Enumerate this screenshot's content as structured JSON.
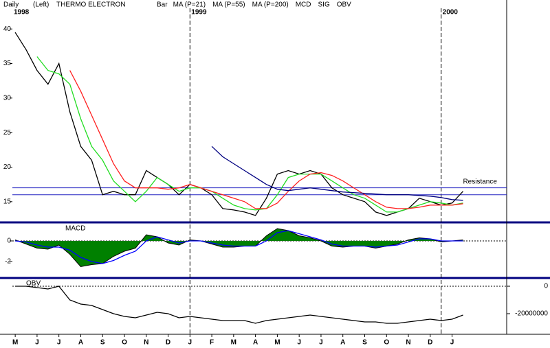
{
  "period": "Daily",
  "scale_side": "(Left)",
  "title": "THERMO ELECTRON",
  "years": [
    {
      "label": "1998",
      "x": -0.13
    },
    {
      "label": "1999",
      "x": 8
    },
    {
      "label": "2000",
      "x": 19.5
    }
  ],
  "chart_data": [
    {
      "type": "line",
      "panel_label": null,
      "annotation": {
        "text": "Resistance",
        "x": 20.5,
        "y": 17.5
      },
      "x": [
        0,
        0.5,
        1,
        1.5,
        2,
        2.5,
        3,
        3.5,
        4,
        4.5,
        5,
        5.5,
        6,
        6.5,
        7,
        7.5,
        8,
        8.5,
        9,
        9.5,
        10,
        10.5,
        11,
        11.5,
        12,
        12.5,
        13,
        13.5,
        14,
        14.5,
        15,
        15.5,
        16,
        16.5,
        17,
        17.5,
        18,
        18.5,
        19,
        19.5,
        20,
        20.5
      ],
      "xlim": [
        -0.13,
        22.5
      ],
      "ylim": [
        12.1,
        43
      ],
      "yticks": [
        15,
        20,
        25,
        30,
        35,
        40
      ],
      "y_axis": "left",
      "hlines": [
        17,
        16
      ],
      "hline_color": "#2020c0",
      "hline_dashed": false,
      "series": [
        {
          "name": "Bar",
          "color": "#000000",
          "values": [
            39.5,
            37,
            34,
            32,
            35,
            28,
            23,
            21,
            16,
            16.5,
            16,
            16,
            19.5,
            18.5,
            17.5,
            16,
            17.5,
            17,
            16,
            14,
            13.8,
            13.5,
            13,
            15.5,
            19,
            19.5,
            19,
            19.5,
            19,
            17,
            16,
            15.5,
            15,
            13.5,
            13,
            13.5,
            14,
            15.5,
            15,
            14.5,
            14.8,
            16.5
          ]
        },
        {
          "name": "MA (P=21)",
          "color": "#22dd22",
          "values": [
            null,
            null,
            36,
            34,
            33.5,
            32,
            27,
            23,
            21,
            18,
            16.5,
            15,
            16.5,
            18.5,
            17.5,
            16.5,
            17,
            17,
            16.5,
            15.5,
            14.5,
            14,
            13.8,
            14,
            16,
            18.5,
            19,
            19,
            19,
            18,
            17,
            16,
            15.5,
            14.5,
            13.5,
            13.5,
            14,
            14.5,
            15,
            14.8,
            14.5,
            14.8
          ]
        },
        {
          "name": "MA (P=55)",
          "color": "#ff2020",
          "values": [
            null,
            null,
            null,
            null,
            null,
            34,
            31,
            27.5,
            24,
            20.5,
            18,
            17,
            17,
            17,
            16.8,
            17,
            17.5,
            17,
            16.5,
            16,
            15.5,
            15,
            14,
            14,
            14.8,
            16.5,
            18,
            19,
            19.2,
            18.8,
            18,
            17,
            16,
            15,
            14.2,
            14,
            14,
            14.2,
            14.5,
            14.5,
            14.5,
            14.7
          ]
        },
        {
          "name": "MA (P=200)",
          "color": "#000080",
          "values": [
            null,
            null,
            null,
            null,
            null,
            null,
            null,
            null,
            null,
            null,
            null,
            null,
            null,
            null,
            null,
            null,
            null,
            null,
            23,
            21.5,
            20.5,
            19.5,
            18.5,
            17.5,
            16.8,
            16.6,
            16.8,
            17,
            16.8,
            16.6,
            16.4,
            16.3,
            16.2,
            16.1,
            16,
            16,
            16,
            15.9,
            15.8,
            15.6,
            15.3,
            15.2
          ]
        }
      ]
    },
    {
      "type": "line",
      "panel_label": "MACD",
      "x": [
        0,
        0.5,
        1,
        1.5,
        2,
        2.5,
        3,
        3.5,
        4,
        4.5,
        5,
        5.5,
        6,
        6.5,
        7,
        7.5,
        8,
        8.5,
        9,
        9.5,
        10,
        10.5,
        11,
        11.5,
        12,
        12.5,
        13,
        13.5,
        14,
        14.5,
        15,
        15.5,
        16,
        16.5,
        17,
        17.5,
        18,
        18.5,
        19,
        19.5,
        20,
        20.5
      ],
      "xlim": [
        -0.13,
        22.5
      ],
      "ylim": [
        -3.47,
        1.6
      ],
      "yticks": [
        0,
        -2
      ],
      "y_axis": "left",
      "hlines": [
        0
      ],
      "hline_color": "#000000",
      "hline_dashed": true,
      "series": [
        {
          "name": "MCD",
          "color": "#008000",
          "area": true,
          "values": [
            0.1,
            -0.3,
            -0.7,
            -0.8,
            -0.4,
            -1.3,
            -2.5,
            -2.3,
            -2.2,
            -1.5,
            -1,
            -0.7,
            0.6,
            0.4,
            -0.2,
            -0.4,
            0.1,
            0,
            -0.3,
            -0.6,
            -0.6,
            -0.5,
            -0.5,
            0.5,
            1.2,
            1,
            0.5,
            0.3,
            0,
            -0.5,
            -0.6,
            -0.5,
            -0.5,
            -0.7,
            -0.5,
            -0.3,
            0.1,
            0.3,
            0.2,
            -0.1,
            0,
            0.1
          ]
        },
        {
          "name": "SIG",
          "color": "#0000ff",
          "values": [
            0,
            -0.1,
            -0.4,
            -0.6,
            -0.6,
            -0.9,
            -1.6,
            -2,
            -2.2,
            -1.9,
            -1.4,
            -1,
            0,
            0.4,
            0.1,
            -0.2,
            0,
            0,
            -0.2,
            -0.4,
            -0.5,
            -0.5,
            -0.5,
            0,
            0.8,
            1,
            0.7,
            0.4,
            0.1,
            -0.3,
            -0.5,
            -0.5,
            -0.5,
            -0.6,
            -0.5,
            -0.4,
            -0.1,
            0.2,
            0.2,
            0,
            0,
            0
          ]
        }
      ]
    },
    {
      "type": "line",
      "panel_label": "OBV",
      "x": [
        0,
        0.5,
        1,
        1.5,
        2,
        2.5,
        3,
        3.5,
        4,
        4.5,
        5,
        5.5,
        6,
        6.5,
        7,
        7.5,
        8,
        8.5,
        9,
        9.5,
        10,
        10.5,
        11,
        11.5,
        12,
        12.5,
        13,
        13.5,
        14,
        14.5,
        15,
        15.5,
        16,
        16.5,
        17,
        17.5,
        18,
        18.5,
        19,
        19.5,
        20,
        20.5
      ],
      "xlim": [
        -0.13,
        22.5
      ],
      "xticks": [
        {
          "value": 0,
          "label": "M"
        },
        {
          "value": 1,
          "label": "J"
        },
        {
          "value": 2,
          "label": "J"
        },
        {
          "value": 3,
          "label": "A"
        },
        {
          "value": 4,
          "label": "S"
        },
        {
          "value": 5,
          "label": "O"
        },
        {
          "value": 6,
          "label": "N"
        },
        {
          "value": 7,
          "label": "D"
        },
        {
          "value": 8,
          "label": "J"
        },
        {
          "value": 9,
          "label": "F"
        },
        {
          "value": 10,
          "label": "M"
        },
        {
          "value": 11,
          "label": "A"
        },
        {
          "value": 12,
          "label": "M"
        },
        {
          "value": 13,
          "label": "J"
        },
        {
          "value": 14,
          "label": "J"
        },
        {
          "value": 15,
          "label": "A"
        },
        {
          "value": 16,
          "label": "S"
        },
        {
          "value": 17,
          "label": "O"
        },
        {
          "value": 18,
          "label": "N"
        },
        {
          "value": 19,
          "label": "D"
        },
        {
          "value": 20,
          "label": "J"
        }
      ],
      "ylim": [
        -35000000,
        5000000
      ],
      "yticks": [
        0,
        -20000000
      ],
      "y_axis": "right",
      "hlines": [
        0
      ],
      "hline_color": "#000000",
      "hline_dashed": true,
      "series": [
        {
          "name": "OBV",
          "color": "#000000",
          "legend_only": true,
          "values": [
            0,
            0,
            -1000000,
            -2000000,
            0,
            -10000000,
            -13000000,
            -14000000,
            -17000000,
            -20000000,
            -22000000,
            -23000000,
            -21000000,
            -19000000,
            -20000000,
            -23000000,
            -22000000,
            -23000000,
            -24000000,
            -25000000,
            -25000000,
            -25000000,
            -27000000,
            -25000000,
            -24000000,
            -23000000,
            -22000000,
            -21000000,
            -22000000,
            -23000000,
            -24000000,
            -25000000,
            -26000000,
            -26000000,
            -27000000,
            -27000000,
            -26000000,
            -25000000,
            -24000000,
            -25000000,
            -24000000,
            -21000000
          ]
        }
      ]
    }
  ]
}
